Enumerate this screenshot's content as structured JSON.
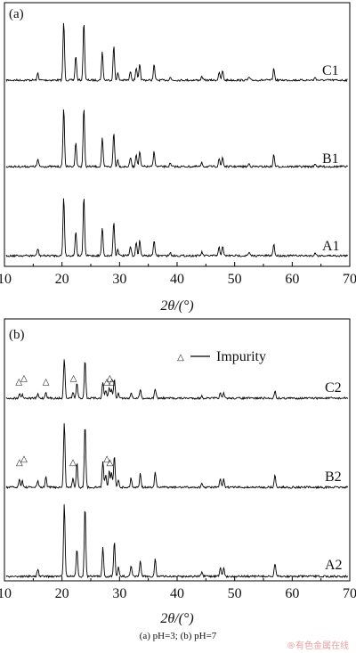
{
  "caption": "(a) pH=3; (b) pH=7",
  "watermark": "®有色金属在线",
  "chart_data": [
    {
      "type": "line",
      "panel_label": "(a)",
      "xlabel": "2θ/(°)",
      "xlim": [
        10,
        70
      ],
      "x_ticks": [
        10,
        20,
        30,
        40,
        50,
        60,
        70
      ],
      "grid": false,
      "peaks": [
        {
          "x": 15.8,
          "h": 0.12
        },
        {
          "x": 20.3,
          "h": 1.0
        },
        {
          "x": 22.4,
          "h": 0.42
        },
        {
          "x": 23.8,
          "h": 1.0
        },
        {
          "x": 27.0,
          "h": 0.48
        },
        {
          "x": 29.0,
          "h": 0.58
        },
        {
          "x": 29.7,
          "h": 0.12
        },
        {
          "x": 31.9,
          "h": 0.16
        },
        {
          "x": 32.9,
          "h": 0.22
        },
        {
          "x": 33.5,
          "h": 0.26
        },
        {
          "x": 36.0,
          "h": 0.26
        },
        {
          "x": 38.8,
          "h": 0.05
        },
        {
          "x": 44.3,
          "h": 0.06
        },
        {
          "x": 47.3,
          "h": 0.14
        },
        {
          "x": 47.9,
          "h": 0.16
        },
        {
          "x": 52.5,
          "h": 0.05
        },
        {
          "x": 56.8,
          "h": 0.2
        },
        {
          "x": 64.0,
          "h": 0.05
        }
      ],
      "series": [
        {
          "name": "C1",
          "scale": 1.0
        },
        {
          "name": "B1",
          "scale": 1.0
        },
        {
          "name": "A1",
          "scale": 1.0
        }
      ]
    },
    {
      "type": "line",
      "panel_label": "(b)",
      "xlabel": "2θ/(°)",
      "xlim": [
        10,
        70
      ],
      "x_ticks": [
        10,
        20,
        30,
        40,
        50,
        60,
        70
      ],
      "grid": false,
      "legend": {
        "label": "Impurity",
        "marker": "△",
        "position": "top-right"
      },
      "peaks": [
        {
          "x": 15.8,
          "h": 0.1
        },
        {
          "x": 20.4,
          "h": 1.0
        },
        {
          "x": 22.6,
          "h": 0.38
        },
        {
          "x": 24.0,
          "h": 0.95
        },
        {
          "x": 27.1,
          "h": 0.4
        },
        {
          "x": 29.1,
          "h": 0.48
        },
        {
          "x": 29.8,
          "h": 0.12
        },
        {
          "x": 32.0,
          "h": 0.14
        },
        {
          "x": 33.6,
          "h": 0.22
        },
        {
          "x": 36.2,
          "h": 0.24
        },
        {
          "x": 44.3,
          "h": 0.05
        },
        {
          "x": 47.5,
          "h": 0.12
        },
        {
          "x": 48.1,
          "h": 0.12
        },
        {
          "x": 57.0,
          "h": 0.18
        }
      ],
      "impurity_peaks": [
        {
          "x": 12.6,
          "h": 0.12
        },
        {
          "x": 13.1,
          "h": 0.1
        },
        {
          "x": 17.2,
          "h": 0.16
        },
        {
          "x": 21.9,
          "h": 0.14
        },
        {
          "x": 27.6,
          "h": 0.2
        },
        {
          "x": 28.2,
          "h": 0.26
        },
        {
          "x": 28.6,
          "h": 0.22
        }
      ],
      "series": [
        {
          "name": "C2",
          "impurity": true,
          "scale": 0.55,
          "markers_x": [
            12.5,
            13.4,
            17.2,
            22.0,
            27.8,
            28.3,
            28.7
          ]
        },
        {
          "name": "B2",
          "impurity": true,
          "scale": 0.9,
          "markers_x": [
            12.6,
            13.4,
            21.9,
            27.8,
            28.3
          ]
        },
        {
          "name": "A2",
          "impurity": false,
          "scale": 1.0,
          "markers_x": []
        }
      ]
    }
  ]
}
